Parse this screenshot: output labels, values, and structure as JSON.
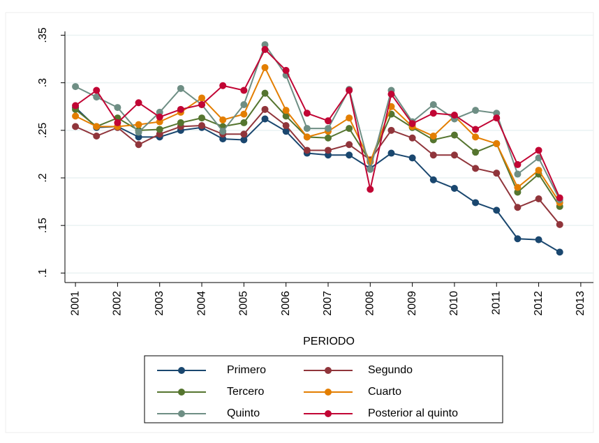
{
  "chart_data": {
    "type": "line",
    "x_label": "PERIODO",
    "x": [
      2001,
      2001.5,
      2002,
      2002.5,
      2003,
      2003.5,
      2004,
      2004.5,
      2005,
      2005.5,
      2006,
      2006.5,
      2007,
      2007.5,
      2008,
      2008.5,
      2009,
      2009.5,
      2010,
      2010.5,
      2011,
      2011.5,
      2012,
      2012.5
    ],
    "xlim": [
      2000.75,
      2013.3
    ],
    "xticks": [
      2001,
      2002,
      2003,
      2004,
      2005,
      2006,
      2007,
      2008,
      2009,
      2010,
      2011,
      2012,
      2013
    ],
    "ylim": [
      0.09,
      0.354
    ],
    "yticks": [
      {
        "value": 0.1,
        "label": ".1"
      },
      {
        "value": 0.15,
        "label": ".15"
      },
      {
        "value": 0.2,
        "label": ".2"
      },
      {
        "value": 0.25,
        "label": ".25"
      },
      {
        "value": 0.3,
        "label": ".3"
      },
      {
        "value": 0.35,
        "label": ".35"
      }
    ],
    "grid": true,
    "legend_position": "bottom",
    "series": [
      {
        "name": "Primero",
        "color": "#1a476f",
        "values": [
          0.274,
          0.253,
          0.254,
          0.243,
          0.243,
          0.25,
          0.253,
          0.241,
          0.24,
          0.262,
          0.249,
          0.226,
          0.224,
          0.224,
          0.21,
          0.226,
          0.221,
          0.198,
          0.189,
          0.174,
          0.166,
          0.136,
          0.135,
          0.122
        ]
      },
      {
        "name": "Segundo",
        "color": "#90353b",
        "values": [
          0.254,
          0.244,
          0.253,
          0.235,
          0.246,
          0.254,
          0.255,
          0.246,
          0.246,
          0.272,
          0.255,
          0.229,
          0.229,
          0.235,
          0.219,
          0.25,
          0.242,
          0.224,
          0.224,
          0.21,
          0.205,
          0.169,
          0.178,
          0.151
        ]
      },
      {
        "name": "Tercero",
        "color": "#55752f",
        "values": [
          0.272,
          0.254,
          0.263,
          0.25,
          0.251,
          0.258,
          0.263,
          0.254,
          0.258,
          0.289,
          0.265,
          0.243,
          0.242,
          0.252,
          0.217,
          0.267,
          0.253,
          0.24,
          0.245,
          0.227,
          0.236,
          0.185,
          0.204,
          0.17
        ]
      },
      {
        "name": "Cuarto",
        "color": "#e37e00",
        "values": [
          0.265,
          0.254,
          0.254,
          0.256,
          0.259,
          0.269,
          0.284,
          0.261,
          0.267,
          0.316,
          0.271,
          0.243,
          0.249,
          0.263,
          0.217,
          0.275,
          0.254,
          0.244,
          0.265,
          0.243,
          0.236,
          0.19,
          0.208,
          0.174
        ]
      },
      {
        "name": "Quinto",
        "color": "#6e8e84",
        "values": [
          0.296,
          0.285,
          0.274,
          0.248,
          0.269,
          0.294,
          0.277,
          0.249,
          0.277,
          0.34,
          0.308,
          0.252,
          0.252,
          0.293,
          0.209,
          0.292,
          0.259,
          0.277,
          0.262,
          0.271,
          0.268,
          0.204,
          0.221,
          0.177
        ]
      },
      {
        "name": "Posterior al quinto",
        "color": "#c10534",
        "values": [
          0.276,
          0.292,
          0.258,
          0.279,
          0.264,
          0.272,
          0.277,
          0.297,
          0.292,
          0.335,
          0.313,
          0.268,
          0.26,
          0.292,
          0.188,
          0.288,
          0.257,
          0.268,
          0.266,
          0.251,
          0.263,
          0.214,
          0.229,
          0.179
        ]
      }
    ]
  }
}
